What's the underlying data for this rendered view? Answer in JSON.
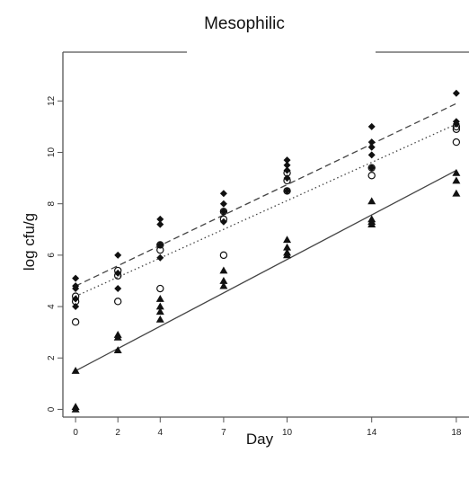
{
  "chart_data": {
    "type": "scatter",
    "title": "Mesophilic",
    "xlabel": "Day",
    "ylabel": "log cfu/g",
    "x_ticks": [
      0,
      2,
      4,
      7,
      10,
      14,
      18
    ],
    "y_ticks": [
      0,
      2,
      4,
      6,
      8,
      10,
      12
    ],
    "xlim": [
      -0.6,
      18.6
    ],
    "ylim": [
      -0.3,
      13.9
    ],
    "grid": false,
    "series": [
      {
        "marker": "filled-diamond",
        "points": [
          [
            0,
            5.1
          ],
          [
            0,
            4.8
          ],
          [
            0,
            4.7
          ],
          [
            0,
            4.3
          ],
          [
            0,
            4.0
          ],
          [
            2,
            6.0
          ],
          [
            2,
            5.3
          ],
          [
            2,
            4.7
          ],
          [
            4,
            7.4
          ],
          [
            4,
            7.2
          ],
          [
            4,
            6.4
          ],
          [
            4,
            5.9
          ],
          [
            7,
            8.4
          ],
          [
            7,
            8.0
          ],
          [
            7,
            7.7
          ],
          [
            7,
            7.3
          ],
          [
            10,
            9.7
          ],
          [
            10,
            9.5
          ],
          [
            10,
            9.3
          ],
          [
            10,
            9.0
          ],
          [
            10,
            8.5
          ],
          [
            14,
            11.0
          ],
          [
            14,
            10.4
          ],
          [
            14,
            10.2
          ],
          [
            14,
            9.9
          ],
          [
            14,
            9.4
          ],
          [
            18,
            12.3
          ],
          [
            18,
            11.2
          ],
          [
            18,
            11.1
          ]
        ],
        "fit": {
          "style": "dashed",
          "x": [
            0,
            18
          ],
          "y": [
            4.8,
            11.9
          ]
        }
      },
      {
        "marker": "open-circle",
        "points": [
          [
            0,
            4.4
          ],
          [
            0,
            4.2
          ],
          [
            0,
            3.4
          ],
          [
            2,
            5.4
          ],
          [
            2,
            5.2
          ],
          [
            2,
            4.2
          ],
          [
            4,
            6.4
          ],
          [
            4,
            6.2
          ],
          [
            4,
            4.7
          ],
          [
            7,
            7.7
          ],
          [
            7,
            7.4
          ],
          [
            7,
            6.0
          ],
          [
            10,
            9.2
          ],
          [
            10,
            8.9
          ],
          [
            10,
            8.5
          ],
          [
            14,
            9.4
          ],
          [
            14,
            9.1
          ],
          [
            18,
            11.0
          ],
          [
            18,
            10.9
          ],
          [
            18,
            10.4
          ]
        ],
        "fit": {
          "style": "dotted",
          "x": [
            0,
            18
          ],
          "y": [
            4.4,
            11.1
          ]
        }
      },
      {
        "marker": "filled-triangle",
        "points": [
          [
            0,
            1.5
          ],
          [
            0,
            0.1
          ],
          [
            0,
            0.0
          ],
          [
            2,
            2.9
          ],
          [
            2,
            2.8
          ],
          [
            2,
            2.3
          ],
          [
            4,
            4.3
          ],
          [
            4,
            4.0
          ],
          [
            4,
            3.8
          ],
          [
            4,
            3.5
          ],
          [
            7,
            5.4
          ],
          [
            7,
            5.0
          ],
          [
            7,
            4.8
          ],
          [
            10,
            6.6
          ],
          [
            10,
            6.3
          ],
          [
            10,
            6.1
          ],
          [
            10,
            6.0
          ],
          [
            14,
            8.1
          ],
          [
            14,
            7.4
          ],
          [
            14,
            7.3
          ],
          [
            14,
            7.2
          ],
          [
            18,
            9.2
          ],
          [
            18,
            8.9
          ],
          [
            18,
            8.4
          ]
        ],
        "fit": {
          "style": "solid",
          "x": [
            0,
            18
          ],
          "y": [
            1.5,
            9.3
          ]
        }
      }
    ]
  }
}
